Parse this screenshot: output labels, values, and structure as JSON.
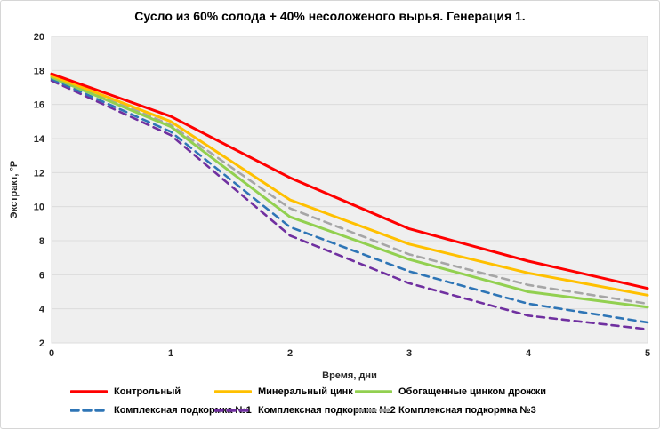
{
  "title": "Сусло из 60% солода + 40% несоложеного вырья. Генерация 1.",
  "chart_data": {
    "type": "line",
    "x": [
      0,
      1,
      2,
      3,
      4,
      5
    ],
    "xlabel": "Время, дни",
    "ylabel": "Экстракт, °P",
    "ylim": [
      2,
      20
    ],
    "ytick_step": 2,
    "grid": true,
    "legend_position": "bottom",
    "plot_bg": "#efefef",
    "grid_color": "#dcdcdc",
    "tick_color": "#262626",
    "series": [
      {
        "name": "Контрольный",
        "color": "#ff0000",
        "dash": "solid",
        "values": [
          17.8,
          15.3,
          11.7,
          8.7,
          6.8,
          5.2
        ]
      },
      {
        "name": "Минеральный цинк",
        "color": "#ffc000",
        "dash": "solid",
        "values": [
          17.7,
          15.0,
          10.4,
          7.8,
          6.1,
          4.8
        ]
      },
      {
        "name": "Обогащенные цинком дрожжи",
        "color": "#92d050",
        "dash": "solid",
        "values": [
          17.6,
          14.7,
          9.4,
          6.9,
          5.0,
          4.1
        ]
      },
      {
        "name": "Комплексная подкормка №1",
        "color": "#2e75b6",
        "dash": "dashed",
        "values": [
          17.5,
          14.4,
          8.8,
          6.2,
          4.3,
          3.2
        ]
      },
      {
        "name": "Комплексная подкормка №2",
        "color": "#7030a0",
        "dash": "dashed",
        "values": [
          17.4,
          14.2,
          8.3,
          5.5,
          3.6,
          2.8
        ]
      },
      {
        "name": "Комплексная подкормка №3",
        "color": "#a6a6a6",
        "dash": "dashed",
        "values": [
          17.7,
          14.8,
          9.9,
          7.2,
          5.4,
          4.3
        ]
      }
    ]
  }
}
